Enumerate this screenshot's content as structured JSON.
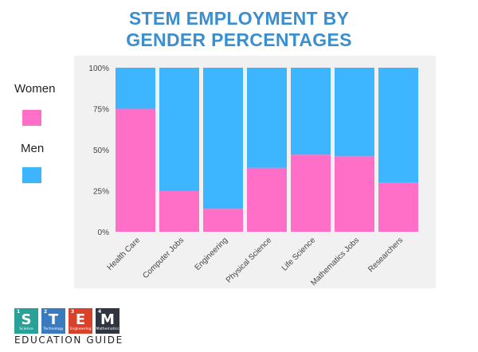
{
  "title_line1": "STEM EMPLOYMENT BY",
  "title_line2": "GENDER PERCENTAGES",
  "legend": {
    "women_label": "Women",
    "men_label": "Men"
  },
  "colors": {
    "women": "#ff6ec7",
    "men": "#3db5ff",
    "title": "#3b8fcf"
  },
  "chart_data": {
    "type": "bar",
    "stacked": true,
    "categories": [
      "Health Care",
      "Computer Jobs",
      "Engineering",
      "Physical Science",
      "Life Science",
      "Mathematics Jobs",
      "Researchers"
    ],
    "series": [
      {
        "name": "Women",
        "values": [
          75,
          25,
          14,
          39,
          47,
          46,
          30
        ]
      },
      {
        "name": "Men",
        "values": [
          25,
          75,
          86,
          61,
          53,
          54,
          70
        ]
      }
    ],
    "y_ticks": [
      "0%",
      "25%",
      "50%",
      "75%",
      "100%"
    ],
    "y_tick_values": [
      0,
      25,
      50,
      75,
      100
    ],
    "ylim": [
      0,
      100
    ]
  },
  "logo": {
    "tiles": [
      {
        "num": "1",
        "letter": "S",
        "sub": "Science",
        "color": "#2aa198"
      },
      {
        "num": "2",
        "letter": "T",
        "sub": "Technology",
        "color": "#3a7bbf"
      },
      {
        "num": "3",
        "letter": "E",
        "sub": "Engineering",
        "color": "#d9412b"
      },
      {
        "num": "4",
        "letter": "M",
        "sub": "Mathematics",
        "color": "#2f3640"
      }
    ],
    "text": "EDUCATION GUIDE"
  }
}
